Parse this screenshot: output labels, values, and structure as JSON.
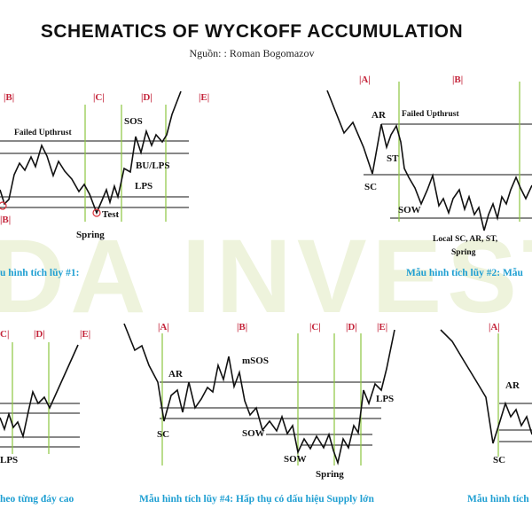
{
  "header": {
    "title": "SCHEMATICS OF WYCKOFF ACCUMULATION",
    "source": "Nguồn: : Roman Bogomazov"
  },
  "watermark": "DA INVEST",
  "colors": {
    "phase_label": "#c4243a",
    "caption": "#1f9fd2",
    "phase_divider": "#8cc63f",
    "event_marker": "#d9323a",
    "price_path": "#111111"
  },
  "schematic_1": {
    "phases": [
      "|B|",
      "|C|",
      "|D|",
      "|E|"
    ],
    "bottom_phase": "|B|",
    "labels": {
      "failed_upthrust": "Failed Upthrust",
      "sos": "SOS",
      "bu_lps": "BU/LPS",
      "lps": "LPS",
      "test": "Test",
      "spring": "Spring"
    },
    "caption": "u hình tích lũy #1:"
  },
  "schematic_2": {
    "phases": [
      "|A|",
      "|B|"
    ],
    "labels": {
      "ar": "AR",
      "failed_upthrust": "Failed  Upthrust",
      "st": "ST",
      "sc": "SC",
      "sow": "SOW",
      "local_line1": "Local SC, AR, ST,",
      "local_line2": "Spring"
    },
    "caption": "Mẫu hình tích lũy #2: Mẫu"
  },
  "schematic_3": {
    "phases": [
      "C|",
      "|D|",
      "|E|"
    ],
    "labels": {
      "lps": "LPS"
    },
    "caption": "heo từng đáy cao"
  },
  "schematic_4": {
    "phases": [
      "|A|",
      "|B|",
      "|C|",
      "|D|",
      "|E|"
    ],
    "labels": {
      "ar": "AR",
      "msos": "mSOS",
      "sc": "SC",
      "sow_1": "SOW",
      "sow_2": "SOW",
      "lps": "LPS",
      "spring": "Spring"
    },
    "caption": "Mẫu hình tích lũy #4: Hấp thụ có dấu hiệu Supply lớn"
  },
  "schematic_5": {
    "phases": [
      "|A|"
    ],
    "labels": {
      "ar": "AR",
      "sc": "SC"
    },
    "caption": "Mẫu hình tích"
  }
}
